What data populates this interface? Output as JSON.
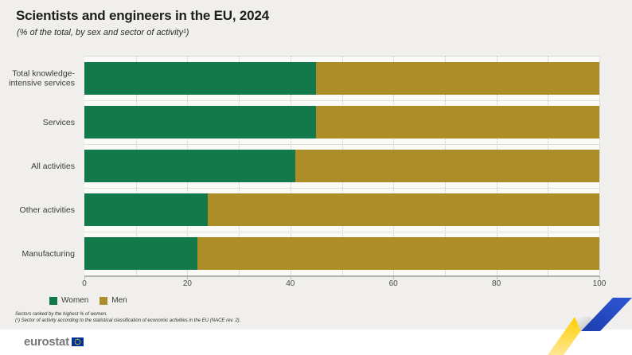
{
  "title": "Scientists and engineers in the EU, 2024",
  "subtitle": "(% of the total, by sex and sector of activity¹)",
  "chart_data": {
    "type": "bar",
    "orientation": "horizontal",
    "stacked": true,
    "unit": "% of the total",
    "categories": [
      "Total knowledge-\nintensive services",
      "Services",
      "All activities",
      "Other activities",
      "Manufacturing"
    ],
    "series": [
      {
        "name": "Women",
        "color": "#14794a",
        "values": [
          45,
          45,
          41,
          24,
          22
        ]
      },
      {
        "name": "Men",
        "color": "#ad8d28",
        "values": [
          55,
          55,
          59,
          76,
          78
        ]
      }
    ],
    "xlim": [
      0,
      100
    ],
    "xticks": [
      0,
      20,
      40,
      60,
      80,
      100
    ],
    "grid_step": 10,
    "grid": "vertical-dotted",
    "legend_position": "bottom-left",
    "sort_note": "sectors ranked by highest % of women"
  },
  "legend": [
    {
      "label": "Women",
      "color": "#14794a"
    },
    {
      "label": "Men",
      "color": "#ad8d28"
    }
  ],
  "footnotes": [
    "Sectors ranked by the highest % of women.",
    "(¹) Sector of activity according to the statistical classification of economic activities in the EU (NACE rev. 2)."
  ],
  "branding": {
    "logo_text": "eurostat",
    "eu_blue": "#003399",
    "star_yellow": "#ffcc00",
    "ribbon_blue": "#2749c0",
    "ribbon_yellow": "#ffd100"
  }
}
